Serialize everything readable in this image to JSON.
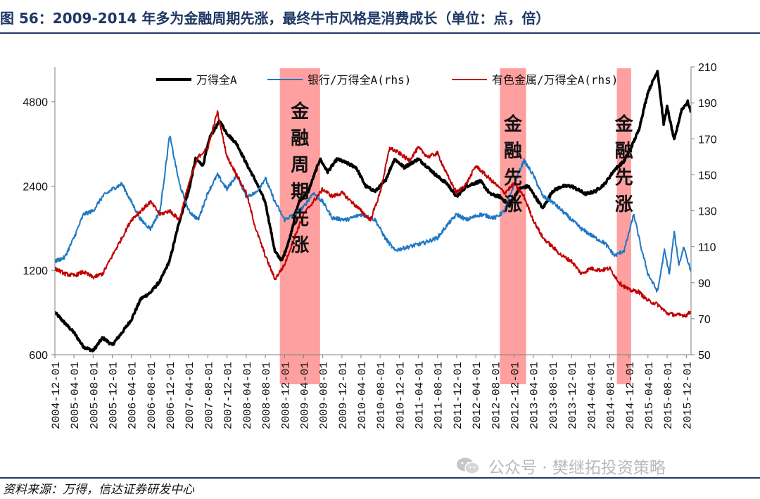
{
  "figure": {
    "title": "图 56：2009-2014 年多为金融周期先涨，最终牛市风格是消费成长（单位：点，倍）",
    "source": "资料来源：万得，信达证券研发中心",
    "watermark": "公众号 · 樊继拓投资策略"
  },
  "colors": {
    "title": "#1f3864",
    "series_black": "#000000",
    "series_blue": "#1f77c4",
    "series_red": "#c00000",
    "band": "#ff8f8f"
  },
  "chart_data": {
    "type": "line",
    "title": "",
    "x_tick_labels": [
      "2004-12-01",
      "2005-04-01",
      "2005-08-01",
      "2005-12-01",
      "2006-04-01",
      "2006-08-01",
      "2006-12-01",
      "2007-04-01",
      "2007-08-01",
      "2007-12-01",
      "2008-04-01",
      "2008-08-01",
      "2008-12-01",
      "2009-04-01",
      "2009-08-01",
      "2009-12-01",
      "2010-04-01",
      "2010-08-01",
      "2010-12-01",
      "2011-04-01",
      "2011-08-01",
      "2011-12-01",
      "2012-04-01",
      "2012-08-01",
      "2012-12-01",
      "2013-04-01",
      "2013-08-01",
      "2013-12-01",
      "2014-04-01",
      "2014-08-01",
      "2014-12-01",
      "2015-04-01",
      "2015-08-01",
      "2015-12-01"
    ],
    "x_range": [
      "2004-12-01",
      "2015-12-31"
    ],
    "y_left": {
      "scale": "log",
      "ticks": [
        600,
        1200,
        2400,
        4800
      ],
      "range": [
        600,
        6400
      ]
    },
    "y_right": {
      "scale": "linear",
      "ticks": [
        50,
        70,
        90,
        110,
        130,
        150,
        170,
        190,
        210
      ],
      "range": [
        50,
        210
      ]
    },
    "legend": [
      "万得全A",
      "银行/万得全A(rhs)",
      "有色金属/万得全A(rhs)"
    ],
    "legend_position": "top",
    "bands": [
      {
        "start": "2008-11-01",
        "end": "2009-07-15",
        "label": [
          "金",
          "融",
          "周",
          "期",
          "先",
          "涨"
        ]
      },
      {
        "start": "2012-09-01",
        "end": "2013-02-15",
        "label": [
          "金",
          "融",
          "先",
          "涨"
        ]
      },
      {
        "start": "2014-09-15",
        "end": "2014-12-15",
        "label": [
          "金",
          "融",
          "先",
          "涨"
        ]
      }
    ],
    "series": [
      {
        "name": "万得全A",
        "axis": "left",
        "color": "#000000",
        "points": [
          [
            "2004-12-01",
            850
          ],
          [
            "2005-02-01",
            780
          ],
          [
            "2005-04-01",
            720
          ],
          [
            "2005-06-01",
            640
          ],
          [
            "2005-08-01",
            620
          ],
          [
            "2005-10-01",
            690
          ],
          [
            "2005-12-01",
            650
          ],
          [
            "2006-02-01",
            720
          ],
          [
            "2006-04-01",
            800
          ],
          [
            "2006-06-01",
            950
          ],
          [
            "2006-08-01",
            1000
          ],
          [
            "2006-10-01",
            1100
          ],
          [
            "2006-12-01",
            1300
          ],
          [
            "2007-02-01",
            1800
          ],
          [
            "2007-04-01",
            2300
          ],
          [
            "2007-05-15",
            3000
          ],
          [
            "2007-07-01",
            2850
          ],
          [
            "2007-08-15",
            3600
          ],
          [
            "2007-10-15",
            4100
          ],
          [
            "2007-12-01",
            3700
          ],
          [
            "2008-02-01",
            3400
          ],
          [
            "2008-04-01",
            2900
          ],
          [
            "2008-06-01",
            2500
          ],
          [
            "2008-08-01",
            2100
          ],
          [
            "2008-10-01",
            1400
          ],
          [
            "2008-11-15",
            1300
          ],
          [
            "2009-01-01",
            1550
          ],
          [
            "2009-03-01",
            2100
          ],
          [
            "2009-05-01",
            2300
          ],
          [
            "2009-07-15",
            3000
          ],
          [
            "2009-09-01",
            2700
          ],
          [
            "2009-11-01",
            3000
          ],
          [
            "2010-01-01",
            2900
          ],
          [
            "2010-03-01",
            2800
          ],
          [
            "2010-05-01",
            2400
          ],
          [
            "2010-07-01",
            2300
          ],
          [
            "2010-09-01",
            2500
          ],
          [
            "2010-11-01",
            3000
          ],
          [
            "2011-01-01",
            2800
          ],
          [
            "2011-04-01",
            3000
          ],
          [
            "2011-06-01",
            2800
          ],
          [
            "2011-08-01",
            2600
          ],
          [
            "2011-10-01",
            2450
          ],
          [
            "2011-12-01",
            2200
          ],
          [
            "2012-02-01",
            2400
          ],
          [
            "2012-05-01",
            2500
          ],
          [
            "2012-07-01",
            2250
          ],
          [
            "2012-09-01",
            2200
          ],
          [
            "2012-11-01",
            2050
          ],
          [
            "2013-01-01",
            2350
          ],
          [
            "2013-03-01",
            2400
          ],
          [
            "2013-06-01",
            2000
          ],
          [
            "2013-08-01",
            2300
          ],
          [
            "2013-10-01",
            2400
          ],
          [
            "2013-12-01",
            2400
          ],
          [
            "2014-03-01",
            2250
          ],
          [
            "2014-05-01",
            2300
          ],
          [
            "2014-07-01",
            2450
          ],
          [
            "2014-09-01",
            2750
          ],
          [
            "2014-11-01",
            2950
          ],
          [
            "2014-12-15",
            3300
          ],
          [
            "2015-02-01",
            3800
          ],
          [
            "2015-04-01",
            5200
          ],
          [
            "2015-06-01",
            6200
          ],
          [
            "2015-07-10",
            4000
          ],
          [
            "2015-08-01",
            4600
          ],
          [
            "2015-09-15",
            3500
          ],
          [
            "2015-11-01",
            4500
          ],
          [
            "2015-12-10",
            4800
          ],
          [
            "2015-12-31",
            4400
          ]
        ]
      },
      {
        "name": "银行/万得全A(rhs)",
        "axis": "right",
        "color": "#1f77c4",
        "points": [
          [
            "2004-12-01",
            102
          ],
          [
            "2005-02-01",
            104
          ],
          [
            "2005-04-01",
            115
          ],
          [
            "2005-06-01",
            128
          ],
          [
            "2005-08-01",
            130
          ],
          [
            "2005-10-01",
            138
          ],
          [
            "2005-12-01",
            142
          ],
          [
            "2006-02-01",
            145
          ],
          [
            "2006-04-01",
            135
          ],
          [
            "2006-06-01",
            125
          ],
          [
            "2006-08-01",
            120
          ],
          [
            "2006-10-01",
            130
          ],
          [
            "2006-12-01",
            172
          ],
          [
            "2007-02-01",
            145
          ],
          [
            "2007-04-01",
            130
          ],
          [
            "2007-06-01",
            125
          ],
          [
            "2007-08-01",
            140
          ],
          [
            "2007-10-01",
            150
          ],
          [
            "2007-12-01",
            142
          ],
          [
            "2008-02-01",
            150
          ],
          [
            "2008-04-01",
            138
          ],
          [
            "2008-06-01",
            140
          ],
          [
            "2008-08-01",
            148
          ],
          [
            "2008-10-01",
            135
          ],
          [
            "2008-12-01",
            125
          ],
          [
            "2009-02-01",
            128
          ],
          [
            "2009-04-01",
            132
          ],
          [
            "2009-06-01",
            140
          ],
          [
            "2009-08-01",
            135
          ],
          [
            "2009-10-01",
            126
          ],
          [
            "2010-01-01",
            125
          ],
          [
            "2010-04-01",
            128
          ],
          [
            "2010-07-01",
            125
          ],
          [
            "2010-09-01",
            115
          ],
          [
            "2010-11-01",
            108
          ],
          [
            "2011-02-01",
            110
          ],
          [
            "2011-05-01",
            112
          ],
          [
            "2011-08-01",
            115
          ],
          [
            "2011-10-01",
            122
          ],
          [
            "2011-12-01",
            128
          ],
          [
            "2012-02-01",
            125
          ],
          [
            "2012-05-01",
            128
          ],
          [
            "2012-08-01",
            126
          ],
          [
            "2012-10-01",
            130
          ],
          [
            "2012-12-01",
            145
          ],
          [
            "2013-02-01",
            158
          ],
          [
            "2013-04-01",
            150
          ],
          [
            "2013-06-01",
            138
          ],
          [
            "2013-08-01",
            135
          ],
          [
            "2013-10-01",
            130
          ],
          [
            "2013-12-01",
            125
          ],
          [
            "2014-02-01",
            120
          ],
          [
            "2014-05-01",
            115
          ],
          [
            "2014-07-01",
            112
          ],
          [
            "2014-09-01",
            105
          ],
          [
            "2014-11-01",
            108
          ],
          [
            "2015-01-01",
            128
          ],
          [
            "2015-02-15",
            110
          ],
          [
            "2015-04-01",
            95
          ],
          [
            "2015-06-01",
            85
          ],
          [
            "2015-07-15",
            108
          ],
          [
            "2015-08-15",
            95
          ],
          [
            "2015-09-15",
            118
          ],
          [
            "2015-10-15",
            100
          ],
          [
            "2015-11-15",
            110
          ],
          [
            "2015-12-31",
            96
          ]
        ]
      },
      {
        "name": "有色金属/万得全A(rhs)",
        "axis": "right",
        "color": "#c00000",
        "points": [
          [
            "2004-12-01",
            98
          ],
          [
            "2005-02-01",
            95
          ],
          [
            "2005-04-01",
            94
          ],
          [
            "2005-06-01",
            96
          ],
          [
            "2005-08-01",
            93
          ],
          [
            "2005-10-01",
            95
          ],
          [
            "2005-12-01",
            105
          ],
          [
            "2006-02-01",
            115
          ],
          [
            "2006-04-01",
            125
          ],
          [
            "2006-06-01",
            130
          ],
          [
            "2006-08-01",
            135
          ],
          [
            "2006-10-01",
            128
          ],
          [
            "2006-12-01",
            130
          ],
          [
            "2007-02-01",
            125
          ],
          [
            "2007-04-01",
            145
          ],
          [
            "2007-06-01",
            160
          ],
          [
            "2007-08-01",
            165
          ],
          [
            "2007-10-01",
            185
          ],
          [
            "2007-12-01",
            160
          ],
          [
            "2008-02-01",
            150
          ],
          [
            "2008-04-01",
            140
          ],
          [
            "2008-06-01",
            120
          ],
          [
            "2008-08-01",
            105
          ],
          [
            "2008-10-01",
            92
          ],
          [
            "2008-12-01",
            100
          ],
          [
            "2009-02-01",
            115
          ],
          [
            "2009-04-01",
            128
          ],
          [
            "2009-06-01",
            135
          ],
          [
            "2009-08-01",
            142
          ],
          [
            "2009-10-01",
            138
          ],
          [
            "2009-12-01",
            140
          ],
          [
            "2010-02-01",
            135
          ],
          [
            "2010-04-01",
            130
          ],
          [
            "2010-06-01",
            125
          ],
          [
            "2010-08-01",
            140
          ],
          [
            "2010-10-01",
            165
          ],
          [
            "2010-12-01",
            162
          ],
          [
            "2011-02-01",
            158
          ],
          [
            "2011-04-01",
            165
          ],
          [
            "2011-06-01",
            160
          ],
          [
            "2011-08-01",
            162
          ],
          [
            "2011-10-01",
            150
          ],
          [
            "2011-12-01",
            140
          ],
          [
            "2012-02-01",
            145
          ],
          [
            "2012-04-01",
            155
          ],
          [
            "2012-06-01",
            150
          ],
          [
            "2012-08-01",
            145
          ],
          [
            "2012-10-01",
            140
          ],
          [
            "2012-12-01",
            145
          ],
          [
            "2013-02-01",
            138
          ],
          [
            "2013-04-01",
            125
          ],
          [
            "2013-06-01",
            115
          ],
          [
            "2013-08-01",
            110
          ],
          [
            "2013-10-01",
            105
          ],
          [
            "2013-12-01",
            102
          ],
          [
            "2014-02-01",
            95
          ],
          [
            "2014-04-01",
            98
          ],
          [
            "2014-06-01",
            97
          ],
          [
            "2014-08-01",
            98
          ],
          [
            "2014-10-01",
            90
          ],
          [
            "2014-12-01",
            86
          ],
          [
            "2015-02-01",
            85
          ],
          [
            "2015-04-01",
            80
          ],
          [
            "2015-06-01",
            78
          ],
          [
            "2015-08-01",
            73
          ],
          [
            "2015-10-01",
            72
          ],
          [
            "2015-12-01",
            72
          ],
          [
            "2015-12-31",
            74
          ]
        ]
      }
    ]
  }
}
